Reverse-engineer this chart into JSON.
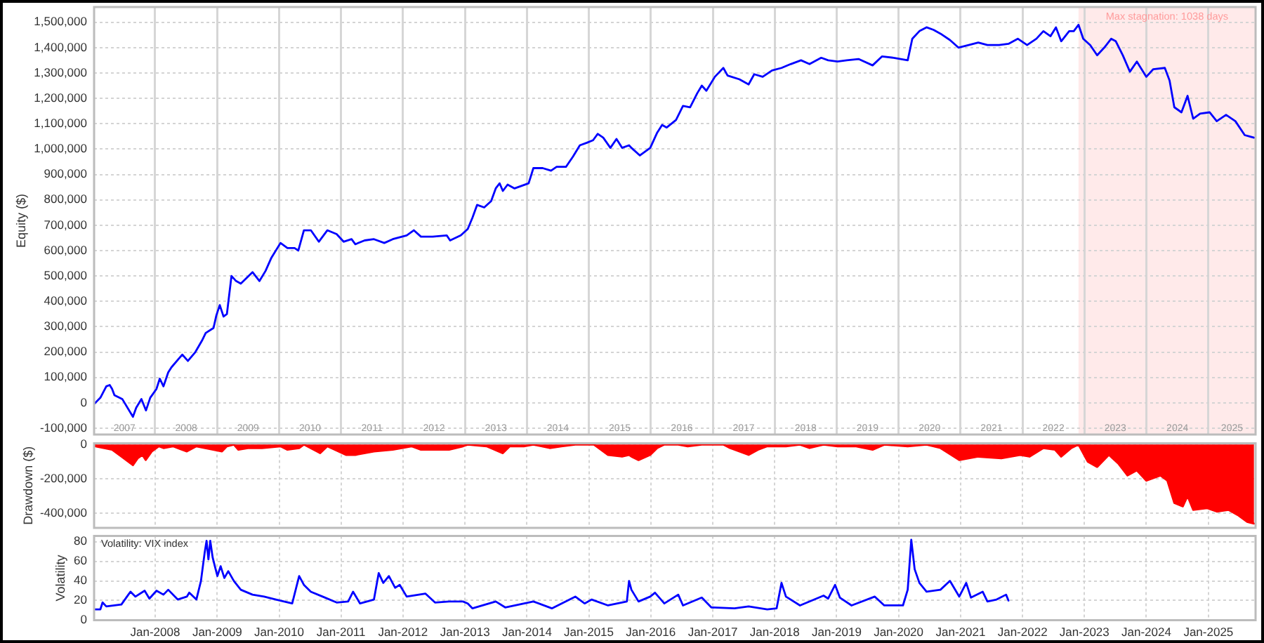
{
  "chart_data": [
    {
      "type": "line",
      "ylabel": "Equity ($)",
      "xlim": [
        "2007-01-06",
        "2025-10-06"
      ],
      "xticks": [
        {
          "value": "2007-07-04",
          "label": "2007"
        },
        {
          "value": "2008-01-01",
          "label": null
        },
        {
          "value": "2008-07-02",
          "label": "2008"
        },
        {
          "value": "2009-01-01",
          "label": null
        },
        {
          "value": "2009-07-02",
          "label": "2009"
        },
        {
          "value": "2010-01-01",
          "label": null
        },
        {
          "value": "2010-07-02",
          "label": "2010"
        },
        {
          "value": "2011-01-01",
          "label": null
        },
        {
          "value": "2011-07-02",
          "label": "2011"
        },
        {
          "value": "2012-01-01",
          "label": null
        },
        {
          "value": "2012-07-02",
          "label": "2012"
        },
        {
          "value": "2013-01-01",
          "label": null
        },
        {
          "value": "2013-07-02",
          "label": "2013"
        },
        {
          "value": "2014-01-01",
          "label": null
        },
        {
          "value": "2014-07-02",
          "label": "2014"
        },
        {
          "value": "2015-01-01",
          "label": null
        },
        {
          "value": "2015-07-02",
          "label": "2015"
        },
        {
          "value": "2016-01-01",
          "label": null
        },
        {
          "value": "2016-07-02",
          "label": "2016"
        },
        {
          "value": "2017-01-01",
          "label": null
        },
        {
          "value": "2017-07-02",
          "label": "2017"
        },
        {
          "value": "2018-01-01",
          "label": null
        },
        {
          "value": "2018-07-02",
          "label": "2018"
        },
        {
          "value": "2019-01-01",
          "label": null
        },
        {
          "value": "2019-07-02",
          "label": "2019"
        },
        {
          "value": "2020-01-01",
          "label": null
        },
        {
          "value": "2020-07-02",
          "label": "2020"
        },
        {
          "value": "2021-01-01",
          "label": null
        },
        {
          "value": "2021-07-02",
          "label": "2021"
        },
        {
          "value": "2022-01-01",
          "label": null
        },
        {
          "value": "2022-07-02",
          "label": "2022"
        },
        {
          "value": "2023-01-01",
          "label": null
        },
        {
          "value": "2023-07-02",
          "label": "2023"
        },
        {
          "value": "2024-01-01",
          "label": null
        },
        {
          "value": "2024-07-02",
          "label": "2024"
        },
        {
          "value": "2025-01-01",
          "label": null
        },
        {
          "value": "2025-05-20",
          "label": "2025"
        }
      ],
      "ylim": [
        -125000,
        1560000
      ],
      "yticks": [
        {
          "value": -100000,
          "label": "-100,000"
        },
        0,
        {
          "value": 100000,
          "label": "100,000"
        },
        {
          "value": 200000,
          "label": "200,000"
        },
        {
          "value": 300000,
          "label": "300,000"
        },
        {
          "value": 400000,
          "label": "400,000"
        },
        {
          "value": 500000,
          "label": "500,000"
        },
        {
          "value": 600000,
          "label": "600,000"
        },
        {
          "value": 700000,
          "label": "700,000"
        },
        {
          "value": 800000,
          "label": "800,000"
        },
        {
          "value": 900000,
          "label": "900,000"
        },
        {
          "value": 1000000,
          "label": "1,000,000"
        },
        {
          "value": 1100000,
          "label": "1,100,000"
        },
        {
          "value": 1200000,
          "label": "1,200,000"
        },
        {
          "value": 1300000,
          "label": "1,300,000"
        },
        {
          "value": 1400000,
          "label": "1,400,000"
        },
        {
          "value": 1500000,
          "label": "1,500,000"
        }
      ],
      "grid": true,
      "bands": [
        {
          "axis": "x",
          "from": "2022-11-27",
          "to": "2025-10-06",
          "label": "Max stagnation: 1038 days",
          "color": "#ffeaea"
        }
      ],
      "series": [
        {
          "color": "#0000ff",
          "x": [
            "2007-01-06",
            "2007-02-12",
            "2007-03-19",
            "2007-04-08",
            "2007-04-22",
            "2007-05-06",
            "2007-06-21",
            "2007-08-23",
            "2007-09-11",
            "2007-10-12",
            "2007-11-08",
            "2007-12-03",
            "2008-01-09",
            "2008-01-28",
            "2008-02-19",
            "2008-03-18",
            "2008-04-06",
            "2008-06-09",
            "2008-07-12",
            "2008-08-25",
            "2008-10-03",
            "2008-10-25",
            "2008-12-10",
            "2008-12-27",
            "2009-01-16",
            "2009-02-07",
            "2009-02-27",
            "2009-03-26",
            "2009-04-22",
            "2009-05-20",
            "2009-07-28",
            "2009-09-07",
            "2009-10-13",
            "2009-11-15",
            "2010-01-09",
            "2010-02-19",
            "2010-04-02",
            "2010-04-24",
            "2010-05-27",
            "2010-07-07",
            "2010-08-23",
            "2010-10-12",
            "2010-12-06",
            "2011-01-16",
            "2011-03-04",
            "2011-03-26",
            "2011-05-20",
            "2011-07-14",
            "2011-09-13",
            "2011-11-02",
            "2012-01-23",
            "2012-03-05",
            "2012-04-16",
            "2012-06-24",
            "2012-09-15",
            "2012-10-05",
            "2012-12-07",
            "2013-01-17",
            "2013-02-14",
            "2013-03-13",
            "2013-04-24",
            "2013-06-04",
            "2013-07-01",
            "2013-07-24",
            "2013-08-12",
            "2013-09-09",
            "2013-10-20",
            "2014-01-11",
            "2014-02-08",
            "2014-04-04",
            "2014-05-23",
            "2014-06-25",
            "2014-08-19",
            "2014-09-29",
            "2014-11-09",
            "2014-12-20",
            "2015-01-26",
            "2015-02-22",
            "2015-03-27",
            "2015-05-08",
            "2015-06-13",
            "2015-07-16",
            "2015-08-26",
            "2015-09-09",
            "2015-10-29",
            "2015-12-29",
            "2016-02-08",
            "2016-03-08",
            "2016-04-04",
            "2016-05-29",
            "2016-07-09",
            "2016-08-20",
            "2016-10-01",
            "2016-10-28",
            "2016-11-24",
            "2017-01-13",
            "2017-03-04",
            "2017-03-29",
            "2017-06-07",
            "2017-07-31",
            "2017-09-02",
            "2017-10-22",
            "2017-12-16",
            "2018-02-10",
            "2018-04-05",
            "2018-06-05",
            "2018-07-25",
            "2018-10-02",
            "2018-11-12",
            "2019-01-06",
            "2019-03-02",
            "2019-05-10",
            "2019-08-01",
            "2019-09-25",
            "2019-12-03",
            "2020-02-24",
            "2020-03-22",
            "2020-05-03",
            "2020-06-14",
            "2020-07-25",
            "2020-09-04",
            "2020-10-30",
            "2020-12-19",
            "2021-02-18",
            "2021-04-15",
            "2021-06-08",
            "2021-08-16",
            "2021-10-10",
            "2021-12-04",
            "2022-01-28",
            "2022-03-24",
            "2022-05-04",
            "2022-06-15",
            "2022-07-17",
            "2022-08-17",
            "2022-10-03",
            "2022-10-30",
            "2022-11-27",
            "2022-12-25",
            "2023-02-04",
            "2023-03-17",
            "2023-04-28",
            "2023-06-08",
            "2023-07-05",
            "2023-08-15",
            "2023-09-26",
            "2023-11-06",
            "2024-01-01",
            "2024-02-11",
            "2024-04-19",
            "2024-05-17",
            "2024-06-14",
            "2024-07-26",
            "2024-08-31",
            "2024-10-03",
            "2024-11-13",
            "2025-01-08",
            "2025-02-19",
            "2025-04-15",
            "2025-06-09",
            "2025-08-03",
            "2025-09-27"
          ],
          "values": [
            -5000,
            20000,
            65000,
            70000,
            55000,
            30000,
            15000,
            -55000,
            -20000,
            15000,
            -30000,
            20000,
            55000,
            95000,
            65000,
            120000,
            140000,
            190000,
            165000,
            200000,
            245000,
            275000,
            295000,
            345000,
            385000,
            340000,
            350000,
            500000,
            480000,
            470000,
            515000,
            480000,
            520000,
            570000,
            630000,
            610000,
            610000,
            600000,
            680000,
            680000,
            635000,
            680000,
            665000,
            635000,
            645000,
            625000,
            640000,
            645000,
            630000,
            645000,
            660000,
            680000,
            655000,
            655000,
            660000,
            640000,
            660000,
            685000,
            730000,
            780000,
            770000,
            795000,
            845000,
            865000,
            835000,
            860000,
            845000,
            865000,
            925000,
            925000,
            915000,
            930000,
            930000,
            970000,
            1015000,
            1025000,
            1035000,
            1060000,
            1045000,
            1005000,
            1040000,
            1005000,
            1015000,
            1005000,
            975000,
            1005000,
            1065000,
            1095000,
            1085000,
            1115000,
            1170000,
            1165000,
            1220000,
            1250000,
            1230000,
            1285000,
            1320000,
            1290000,
            1275000,
            1255000,
            1295000,
            1285000,
            1310000,
            1320000,
            1335000,
            1350000,
            1335000,
            1360000,
            1350000,
            1345000,
            1350000,
            1355000,
            1330000,
            1365000,
            1360000,
            1350000,
            1435000,
            1465000,
            1480000,
            1470000,
            1455000,
            1430000,
            1400000,
            1410000,
            1420000,
            1410000,
            1410000,
            1415000,
            1435000,
            1410000,
            1435000,
            1465000,
            1445000,
            1480000,
            1425000,
            1465000,
            1465000,
            1490000,
            1435000,
            1410000,
            1370000,
            1400000,
            1435000,
            1425000,
            1370000,
            1305000,
            1345000,
            1285000,
            1315000,
            1320000,
            1270000,
            1165000,
            1145000,
            1210000,
            1120000,
            1140000,
            1145000,
            1110000,
            1135000,
            1110000,
            1055000,
            1045000
          ]
        }
      ]
    },
    {
      "type": "area",
      "ylabel": "Drawdown ($)",
      "xlim": [
        "2007-01-06",
        "2025-10-06"
      ],
      "xticks": [
        {
          "value": "2008-01-01",
          "label": null
        },
        {
          "value": "2009-01-01",
          "label": null
        },
        {
          "value": "2010-01-01",
          "label": null
        },
        {
          "value": "2011-01-01",
          "label": null
        },
        {
          "value": "2012-01-01",
          "label": null
        },
        {
          "value": "2013-01-01",
          "label": null
        },
        {
          "value": "2014-01-01",
          "label": null
        },
        {
          "value": "2015-01-01",
          "label": null
        },
        {
          "value": "2016-01-01",
          "label": null
        },
        {
          "value": "2017-01-01",
          "label": null
        },
        {
          "value": "2018-01-01",
          "label": null
        },
        {
          "value": "2019-01-01",
          "label": null
        },
        {
          "value": "2020-01-01",
          "label": null
        },
        {
          "value": "2021-01-01",
          "label": null
        },
        {
          "value": "2022-01-01",
          "label": null
        },
        {
          "value": "2023-01-01",
          "label": null
        },
        {
          "value": "2024-01-01",
          "label": null
        },
        {
          "value": "2025-01-01",
          "label": null
        }
      ],
      "ylim": [
        -485000,
        8000
      ],
      "yticks": [
        {
          "value": -400000,
          "label": "-400,000"
        },
        {
          "value": -200000,
          "label": "-200,000"
        },
        0
      ],
      "grid": true,
      "tick_labels": "y",
      "series": [
        {
          "color": "#ff0000",
          "x": [
            "2007-01-06",
            "2007-01-15",
            "2007-04-22",
            "2007-06-16",
            "2007-08-23",
            "2007-09-20",
            "2007-10-18",
            "2007-11-06",
            "2007-12-12",
            "2008-01-22",
            "2008-02-19",
            "2008-04-15",
            "2008-07-06",
            "2008-08-31",
            "2009-01-29",
            "2009-02-27",
            "2009-04-09",
            "2009-05-06",
            "2009-07-01",
            "2009-09-22",
            "2010-01-09",
            "2010-02-19",
            "2010-04-29",
            "2010-05-27",
            "2010-08-31",
            "2010-10-12",
            "2011-01-30",
            "2011-03-26",
            "2011-07-14",
            "2011-11-02",
            "2012-02-20",
            "2012-04-16",
            "2012-09-29",
            "2012-12-20",
            "2013-01-17",
            "2013-05-08",
            "2013-08-12",
            "2013-09-22",
            "2013-12-14",
            "2014-02-08",
            "2014-05-15",
            "2014-07-23",
            "2014-10-13",
            "2015-01-31",
            "2015-04-24",
            "2015-07-16",
            "2015-08-26",
            "2015-09-09",
            "2015-10-21",
            "2015-12-29",
            "2016-02-08",
            "2016-03-21",
            "2016-06-11",
            "2016-08-06",
            "2016-10-28",
            "2017-03-04",
            "2017-04-12",
            "2017-07-31",
            "2017-09-24",
            "2017-11-18",
            "2018-03-08",
            "2018-05-30",
            "2018-07-25",
            "2018-10-16",
            "2019-01-06",
            "2019-04-26",
            "2019-08-01",
            "2019-10-09",
            "2020-02-24",
            "2020-06-14",
            "2020-09-04",
            "2020-12-24",
            "2021-04-15",
            "2021-08-29",
            "2021-12-18",
            "2022-02-11",
            "2022-05-04",
            "2022-07-12",
            "2022-08-17",
            "2022-10-16",
            "2022-11-27",
            "2023-01-21",
            "2023-03-17",
            "2023-05-25",
            "2023-07-19",
            "2023-09-12",
            "2023-11-06",
            "2024-01-01",
            "2024-03-24",
            "2024-05-04",
            "2024-06-14",
            "2024-08-03",
            "2024-08-31",
            "2024-10-03",
            "2024-12-25",
            "2025-02-19",
            "2025-04-29",
            "2025-06-23",
            "2025-08-17",
            "2025-09-27"
          ],
          "values": [
            0,
            -10000,
            -30000,
            -70000,
            -120000,
            -80000,
            -60000,
            -90000,
            -40000,
            -10000,
            -20000,
            -10000,
            -40000,
            -10000,
            -40000,
            -10000,
            0,
            -30000,
            -20000,
            -20000,
            -10000,
            -30000,
            -20000,
            0,
            -50000,
            -10000,
            -60000,
            -60000,
            -40000,
            -30000,
            -10000,
            -30000,
            -30000,
            -10000,
            0,
            -10000,
            -50000,
            -10000,
            -10000,
            0,
            -20000,
            -10000,
            0,
            0,
            -60000,
            -70000,
            -60000,
            -70000,
            -90000,
            -60000,
            -20000,
            0,
            0,
            -10000,
            0,
            0,
            -20000,
            -60000,
            -30000,
            -10000,
            -10000,
            0,
            -20000,
            0,
            -10000,
            -10000,
            -30000,
            0,
            -10000,
            0,
            -20000,
            -90000,
            -70000,
            -80000,
            -60000,
            -70000,
            -20000,
            -30000,
            -70000,
            -20000,
            0,
            -100000,
            -130000,
            -60000,
            -110000,
            -180000,
            -150000,
            -210000,
            -180000,
            -210000,
            -340000,
            -360000,
            -300000,
            -380000,
            -370000,
            -390000,
            -380000,
            -410000,
            -450000,
            -460000
          ]
        }
      ]
    },
    {
      "type": "line",
      "title": "Volatility: VIX index",
      "ylabel": "Volatility",
      "xlim": [
        "2007-01-06",
        "2025-10-06"
      ],
      "xticks": [
        {
          "value": "2008-01-01",
          "label": "Jan-2008"
        },
        {
          "value": "2009-01-01",
          "label": "Jan-2009"
        },
        {
          "value": "2010-01-01",
          "label": "Jan-2010"
        },
        {
          "value": "2011-01-01",
          "label": "Jan-2011"
        },
        {
          "value": "2012-01-01",
          "label": "Jan-2012"
        },
        {
          "value": "2013-01-01",
          "label": "Jan-2013"
        },
        {
          "value": "2014-01-01",
          "label": "Jan-2014"
        },
        {
          "value": "2015-01-01",
          "label": "Jan-2015"
        },
        {
          "value": "2016-01-01",
          "label": "Jan-2016"
        },
        {
          "value": "2017-01-01",
          "label": "Jan-2017"
        },
        {
          "value": "2018-01-01",
          "label": "Jan-2018"
        },
        {
          "value": "2019-01-01",
          "label": "Jan-2019"
        },
        {
          "value": "2020-01-01",
          "label": "Jan-2020"
        },
        {
          "value": "2021-01-01",
          "label": "Jan-2021"
        },
        {
          "value": "2022-01-01",
          "label": "Jan-2022"
        },
        {
          "value": "2023-01-01",
          "label": "Jan-2023"
        },
        {
          "value": "2024-01-01",
          "label": "Jan-2024"
        },
        {
          "value": "2025-01-01",
          "label": "Jan-2025"
        }
      ],
      "ylim": [
        0,
        86
      ],
      "yticks": [
        0,
        20,
        40,
        60,
        80
      ],
      "grid": true,
      "series": [
        {
          "color": "#0000ff",
          "x": [
            "2007-01-06",
            "2007-02-12",
            "2007-02-25",
            "2007-03-19",
            "2007-06-16",
            "2007-07-27",
            "2007-08-09",
            "2007-09-07",
            "2007-10-31",
            "2007-11-28",
            "2008-01-09",
            "2008-02-19",
            "2008-03-18",
            "2008-05-13",
            "2008-07-06",
            "2008-07-20",
            "2008-08-31",
            "2008-09-27",
            "2008-10-19",
            "2008-10-30",
            "2008-11-10",
            "2008-11-21",
            "2008-12-05",
            "2008-12-18",
            "2009-01-02",
            "2009-01-21",
            "2009-02-12",
            "2009-03-07",
            "2009-04-09",
            "2009-05-20",
            "2009-07-28",
            "2009-10-04",
            "2009-12-13",
            "2010-03-19",
            "2010-04-29",
            "2010-05-27",
            "2010-07-07",
            "2010-09-14",
            "2010-12-06",
            "2011-02-12",
            "2011-03-13",
            "2011-04-23",
            "2011-07-14",
            "2011-08-11",
            "2011-09-07",
            "2011-10-10",
            "2011-11-16",
            "2011-12-13",
            "2012-01-23",
            "2012-05-13",
            "2012-07-08",
            "2012-09-29",
            "2012-12-20",
            "2013-01-17",
            "2013-02-14",
            "2013-07-01",
            "2013-08-26",
            "2014-02-08",
            "2014-05-28",
            "2014-10-13",
            "2014-12-07",
            "2015-01-18",
            "2015-04-24",
            "2015-08-13",
            "2015-08-26",
            "2015-09-09",
            "2015-10-21",
            "2015-12-29",
            "2016-01-26",
            "2016-03-21",
            "2016-06-11",
            "2016-07-09",
            "2016-10-28",
            "2016-12-23",
            "2017-05-09",
            "2017-07-31",
            "2017-11-18",
            "2018-01-12",
            "2018-02-10",
            "2018-03-08",
            "2018-05-30",
            "2018-10-16",
            "2018-11-12",
            "2018-12-23",
            "2019-01-20",
            "2019-03-30",
            "2019-08-14",
            "2019-10-09",
            "2020-01-27",
            "2020-02-24",
            "2020-03-16",
            "2020-04-05",
            "2020-05-03",
            "2020-06-14",
            "2020-09-04",
            "2020-10-30",
            "2020-12-24",
            "2021-02-03",
            "2021-03-03",
            "2021-05-11",
            "2021-06-08",
            "2021-08-01",
            "2021-09-26",
            "2021-10-10"
          ],
          "values": [
            11,
            11,
            18,
            14,
            16,
            26,
            29,
            24,
            30,
            22,
            30,
            26,
            31,
            21,
            24,
            28,
            21,
            40,
            69,
            81,
            62,
            81,
            64,
            55,
            45,
            55,
            43,
            50,
            40,
            31,
            26,
            24,
            21,
            17,
            45,
            36,
            29,
            24,
            18,
            19,
            29,
            17,
            21,
            48,
            38,
            45,
            33,
            36,
            24,
            27,
            18,
            19,
            19,
            17,
            12,
            19,
            13,
            19,
            12,
            24,
            17,
            21,
            15,
            19,
            40,
            31,
            19,
            24,
            28,
            17,
            26,
            15,
            23,
            13,
            12,
            14,
            11,
            12,
            38,
            24,
            15,
            25,
            22,
            36,
            23,
            15,
            24,
            15,
            15,
            31,
            82,
            52,
            38,
            29,
            31,
            40,
            24,
            38,
            23,
            29,
            19,
            21,
            26,
            20
          ]
        }
      ]
    }
  ]
}
